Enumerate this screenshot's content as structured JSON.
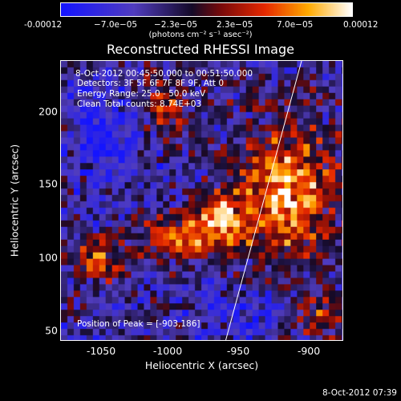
{
  "colorbar": {
    "ticks": [
      "-0.00012",
      "−7.0e−05",
      "−2.3e−05",
      "2.3e−05",
      "7.0e−05",
      "0.00012"
    ],
    "unit": "(photons cm⁻² s⁻¹ asec⁻²)"
  },
  "title": "Reconstructed RHESSI Image",
  "info": {
    "time_range": "8-Oct-2012 00:45:50.000 to 00:51:50.000",
    "detectors": "Detectors: 3F 5F 6F 7F 8F 9F, Att 0",
    "energy": "Energy Range: 25.0 - 50.0 keV",
    "clean": "Clean     Total counts: 8.74E+03",
    "peak": "Position of Peak = [-903,186]"
  },
  "axes": {
    "xlabel": "Heliocentric X (arcsec)",
    "ylabel": "Heliocentric Y (arcsec)",
    "xticks": [
      "-1050",
      "-1000",
      "-950",
      "-900"
    ],
    "yticks": [
      "200",
      "150",
      "100",
      "50"
    ]
  },
  "timestamp": "8-Oct-2012 07:39",
  "colors": {
    "low": "#1a1aff",
    "mid": "#000000",
    "high": "#ffffff",
    "accent": "#ff3300"
  }
}
